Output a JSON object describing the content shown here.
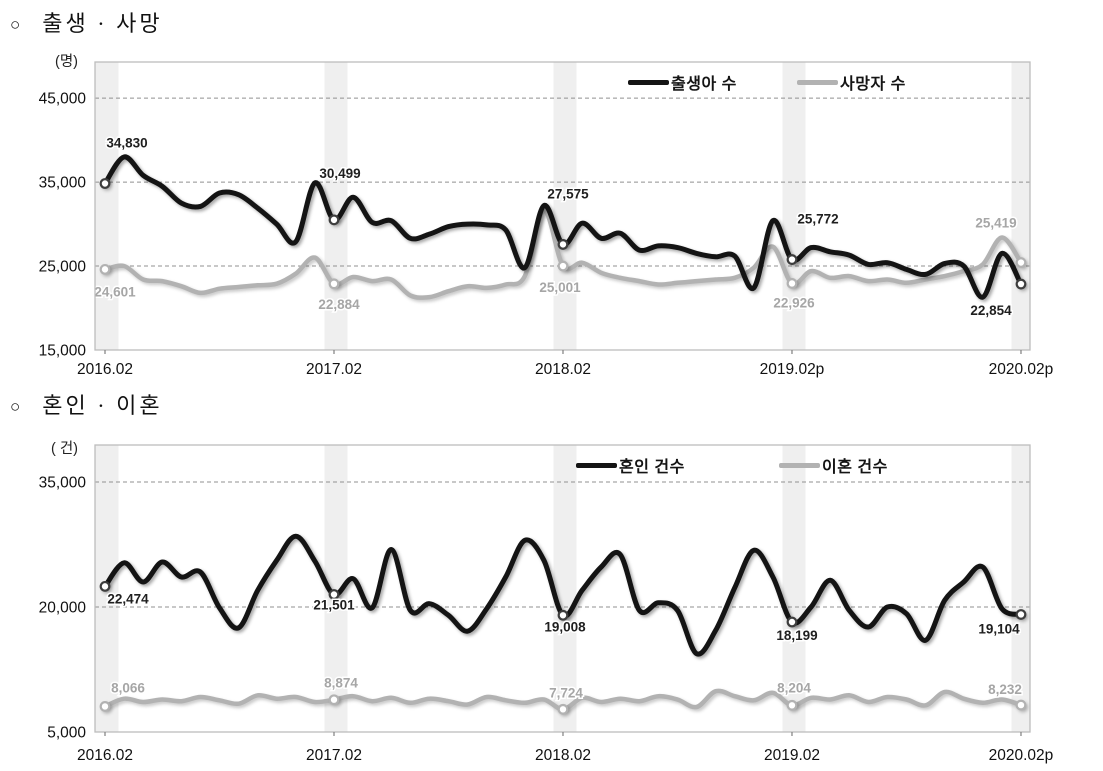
{
  "page": {
    "background": "#ffffff"
  },
  "titles": {
    "chart1_bullet": "○",
    "chart1": "출생 · 사망",
    "chart2_bullet": "○",
    "chart2": "혼인 · 이혼"
  },
  "colors": {
    "primary_line": "#141414",
    "secondary_line": "#b2b2b2",
    "band": "#efefef",
    "grid": "#909090",
    "border": "#bdbdbd",
    "primary_label": "#1f1f1f",
    "secondary_label": "#a6a6a6"
  },
  "chart_data": [
    {
      "type": "line",
      "title": "출생 · 사망",
      "unit": "(명)",
      "x_period": "monthly 2016.02 - 2020.02",
      "x_ticks": [
        {
          "i": 0,
          "label": "2016.02"
        },
        {
          "i": 12,
          "label": "2017.02"
        },
        {
          "i": 24,
          "label": "2018.02"
        },
        {
          "i": 36,
          "label": "2019.02p"
        },
        {
          "i": 48,
          "label": "2020.02p"
        }
      ],
      "y_ticks": [
        {
          "v": 15000,
          "label": "15,000"
        },
        {
          "v": 25000,
          "label": "25,000"
        },
        {
          "v": 35000,
          "label": "35,000"
        },
        {
          "v": 45000,
          "label": "45,000"
        }
      ],
      "ylim": [
        15000,
        49300
      ],
      "grid": true,
      "legend_position": "top-inside",
      "band_indices": [
        0,
        12,
        24,
        36,
        48
      ],
      "series": [
        {
          "key": "births",
          "name": "출생아 수",
          "color": "#141414",
          "width": 5,
          "values": [
            34830,
            38000,
            35800,
            34500,
            32500,
            32100,
            33700,
            33500,
            31900,
            30000,
            27900,
            34900,
            30499,
            33200,
            30200,
            30400,
            28300,
            28800,
            29700,
            30000,
            29900,
            29300,
            24800,
            32200,
            27575,
            30100,
            28300,
            28900,
            26900,
            27400,
            27200,
            26500,
            26100,
            26200,
            22400,
            30400,
            25772,
            27200,
            26700,
            26300,
            25200,
            25400,
            24600,
            24000,
            25300,
            25000,
            21300,
            26500,
            22854
          ],
          "point_labels": [
            {
              "i": 0,
              "text": "34,830",
              "dx": 22,
              "dy": -36
            },
            {
              "i": 12,
              "text": "30,499",
              "dx": 6,
              "dy": -42
            },
            {
              "i": 24,
              "text": "27,575",
              "dx": 5,
              "dy": -46
            },
            {
              "i": 36,
              "text": "25,772",
              "dx": 26,
              "dy": -36
            },
            {
              "i": 48,
              "text": "22,854",
              "dx": -30,
              "dy": 31
            }
          ]
        },
        {
          "key": "deaths",
          "name": "사망자 수",
          "color": "#b2b2b2",
          "width": 4.5,
          "values": [
            24601,
            25000,
            23400,
            23200,
            22600,
            21800,
            22300,
            22500,
            22700,
            22900,
            24100,
            26000,
            22884,
            23700,
            23200,
            23400,
            21500,
            21300,
            22000,
            22600,
            22400,
            22800,
            23800,
            31600,
            25001,
            25400,
            24200,
            23600,
            23200,
            22800,
            23000,
            23200,
            23400,
            23600,
            24800,
            27300,
            22926,
            24400,
            23600,
            23800,
            23200,
            23400,
            23000,
            23400,
            23800,
            24400,
            25200,
            28400,
            25419
          ],
          "point_labels": [
            {
              "i": 0,
              "text": "24,601",
              "dx": 10,
              "dy": 27
            },
            {
              "i": 12,
              "text": "22,884",
              "dx": 5,
              "dy": 25
            },
            {
              "i": 24,
              "text": "25,001",
              "dx": -3,
              "dy": 26
            },
            {
              "i": 36,
              "text": "22,926",
              "dx": 2,
              "dy": 24
            },
            {
              "i": 48,
              "text": "25,419",
              "dx": -25,
              "dy": -35
            }
          ]
        }
      ]
    },
    {
      "type": "line",
      "title": "혼인 · 이혼",
      "unit": "( 건)",
      "x_period": "monthly 2016.02 - 2020.02",
      "x_ticks": [
        {
          "i": 0,
          "label": "2016.02"
        },
        {
          "i": 12,
          "label": "2017.02"
        },
        {
          "i": 24,
          "label": "2018.02"
        },
        {
          "i": 36,
          "label": "2019.02"
        },
        {
          "i": 48,
          "label": "2020.02p"
        }
      ],
      "y_ticks": [
        {
          "v": 5000,
          "label": "5,000"
        },
        {
          "v": 20000,
          "label": "20,000"
        },
        {
          "v": 35000,
          "label": "35,000"
        }
      ],
      "ylim": [
        5000,
        39440
      ],
      "grid": true,
      "legend_position": "top-inside",
      "band_indices": [
        0,
        12,
        24,
        36,
        48
      ],
      "series": [
        {
          "key": "marriages",
          "name": "혼인 건수",
          "color": "#141414",
          "width": 5,
          "values": [
            22474,
            25300,
            23000,
            25400,
            23600,
            24200,
            19900,
            17500,
            22000,
            25600,
            28500,
            25500,
            21501,
            23400,
            19900,
            26900,
            19600,
            20400,
            19000,
            17100,
            19800,
            23600,
            28000,
            25600,
            19008,
            22000,
            24800,
            26300,
            19600,
            20500,
            19600,
            14400,
            17200,
            22300,
            26800,
            23600,
            18199,
            20000,
            23200,
            19600,
            17600,
            20000,
            19200,
            16000,
            20800,
            23000,
            24800,
            19800,
            19104
          ],
          "point_labels": [
            {
              "i": 0,
              "text": "22,474",
              "dx": 23,
              "dy": 17
            },
            {
              "i": 12,
              "text": "21,501",
              "dx": 0,
              "dy": 15
            },
            {
              "i": 24,
              "text": "19,008",
              "dx": 2,
              "dy": 16
            },
            {
              "i": 36,
              "text": "18,199",
              "dx": 5,
              "dy": 18
            },
            {
              "i": 48,
              "text": "19,104",
              "dx": -22,
              "dy": 19
            }
          ]
        },
        {
          "key": "divorces",
          "name": "이혼 건수",
          "color": "#b2b2b2",
          "width": 4.5,
          "values": [
            8066,
            9000,
            8600,
            8900,
            8700,
            9200,
            8800,
            8400,
            9400,
            9000,
            9200,
            8600,
            8874,
            9300,
            8700,
            9100,
            8500,
            9000,
            8700,
            8300,
            9200,
            8800,
            8500,
            8900,
            7724,
            9100,
            8600,
            9000,
            8700,
            9300,
            8900,
            8000,
            9900,
            9300,
            8800,
            9700,
            8204,
            9100,
            8900,
            9400,
            8600,
            9200,
            8900,
            8200,
            9800,
            9000,
            8500,
            8900,
            8232
          ],
          "point_labels": [
            {
              "i": 0,
              "text": "8,066",
              "dx": 23,
              "dy": -14
            },
            {
              "i": 12,
              "text": "8,874",
              "dx": 7,
              "dy": -12
            },
            {
              "i": 24,
              "text": "7,724",
              "dx": 3,
              "dy": -12
            },
            {
              "i": 36,
              "text": "8,204",
              "dx": 2,
              "dy": -13
            },
            {
              "i": 48,
              "text": "8,232",
              "dx": -16,
              "dy": -11
            }
          ]
        }
      ]
    }
  ]
}
